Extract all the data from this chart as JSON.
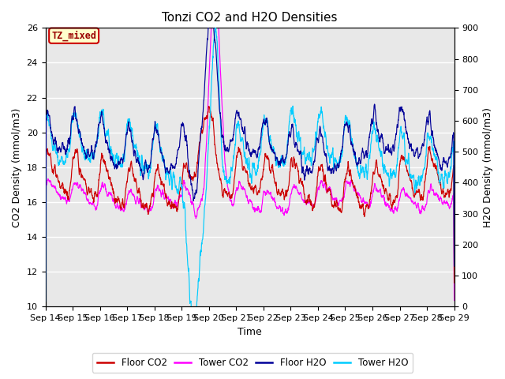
{
  "title": "Tonzi CO2 and H2O Densities",
  "xlabel": "Time",
  "ylabel_left": "CO2 Density (mmol/m3)",
  "ylabel_right": "H2O Density (mmol/m3)",
  "xlim_days": [
    0,
    15
  ],
  "ylim_left": [
    10,
    26
  ],
  "ylim_right": [
    0,
    900
  ],
  "yticks_left": [
    10,
    12,
    14,
    16,
    18,
    20,
    22,
    24,
    26
  ],
  "yticks_right": [
    0,
    100,
    200,
    300,
    400,
    500,
    600,
    700,
    800,
    900
  ],
  "xtick_labels": [
    "Sep 14",
    "Sep 15",
    "Sep 16",
    "Sep 17",
    "Sep 18",
    "Sep 19",
    "Sep 20",
    "Sep 21",
    "Sep 22",
    "Sep 23",
    "Sep 24",
    "Sep 25",
    "Sep 26",
    "Sep 27",
    "Sep 28",
    "Sep 29"
  ],
  "annotation_text": "TZ_mixed",
  "colors": {
    "floor_co2": "#CC0000",
    "tower_co2": "#FF00FF",
    "floor_h2o": "#000099",
    "tower_h2o": "#00CCFF"
  },
  "legend_labels": [
    "Floor CO2",
    "Tower CO2",
    "Floor H2O",
    "Tower H2O"
  ],
  "background_color": "#E8E8E8",
  "title_fontsize": 11,
  "axis_fontsize": 9,
  "tick_fontsize": 8
}
